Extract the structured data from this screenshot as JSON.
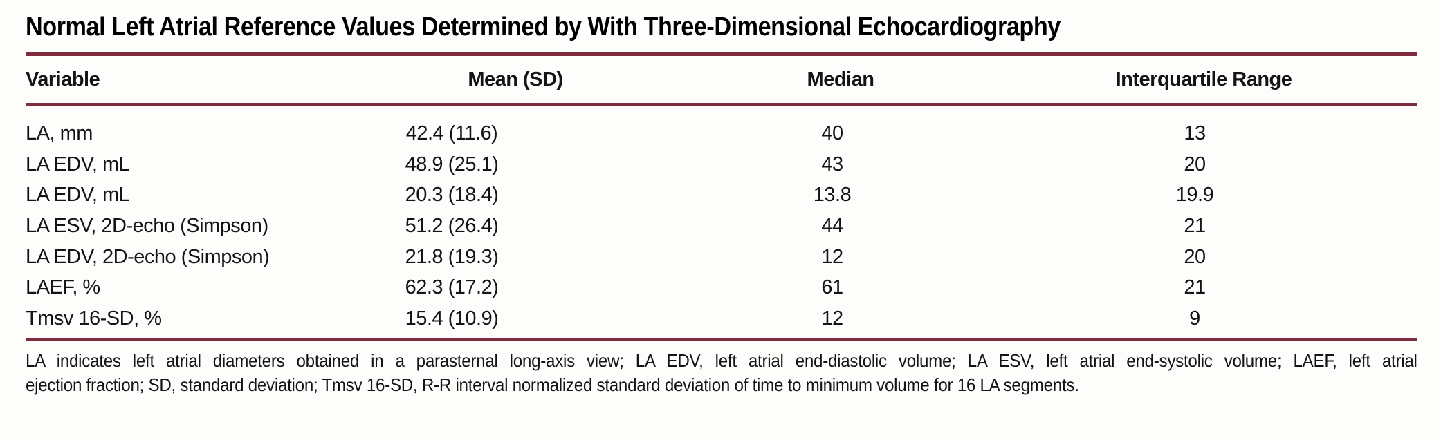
{
  "table": {
    "title": "Normal Left Atrial Reference Values Determined by With Three-Dimensional Echocardiography",
    "columns": [
      "Variable",
      "Mean (SD)",
      "Median",
      "Interquartile Range"
    ],
    "rows": [
      {
        "variable": "LA, mm",
        "mean_sd": "42.4 (11.6)",
        "median": "40",
        "iqr": "13"
      },
      {
        "variable": "LA EDV, mL",
        "mean_sd": "48.9 (25.1)",
        "median": "43",
        "iqr": "20"
      },
      {
        "variable": "LA EDV, mL",
        "mean_sd": "20.3 (18.4)",
        "median": "13.8",
        "iqr": "19.9"
      },
      {
        "variable": "LA ESV, 2D-echo (Simpson)",
        "mean_sd": "51.2 (26.4)",
        "median": "44",
        "iqr": "21"
      },
      {
        "variable": "LA EDV, 2D-echo (Simpson)",
        "mean_sd": "21.8 (19.3)",
        "median": "12",
        "iqr": "20"
      },
      {
        "variable": "LAEF, %",
        "mean_sd": "62.3 (17.2)",
        "median": "61",
        "iqr": "21"
      },
      {
        "variable": "Tmsv 16-SD, %",
        "mean_sd": "15.4 (10.9)",
        "median": "12",
        "iqr": "9"
      }
    ],
    "footnote": {
      "line1": "LA indicates left atrial diameters obtained in a parasternal long-axis view; LA EDV, left atrial end-diastolic volume; LA ESV, left atrial end-systolic volume; LAEF, left atrial",
      "line2": "ejection fraction; SD, standard deviation; Tmsv 16-SD, R-R interval normalized standard deviation of time to minimum volume for 16 LA segments."
    }
  },
  "colors": {
    "rule": "#7f2c3e",
    "text": "#141414",
    "title": "#000000",
    "background": "#fdfdfb"
  }
}
